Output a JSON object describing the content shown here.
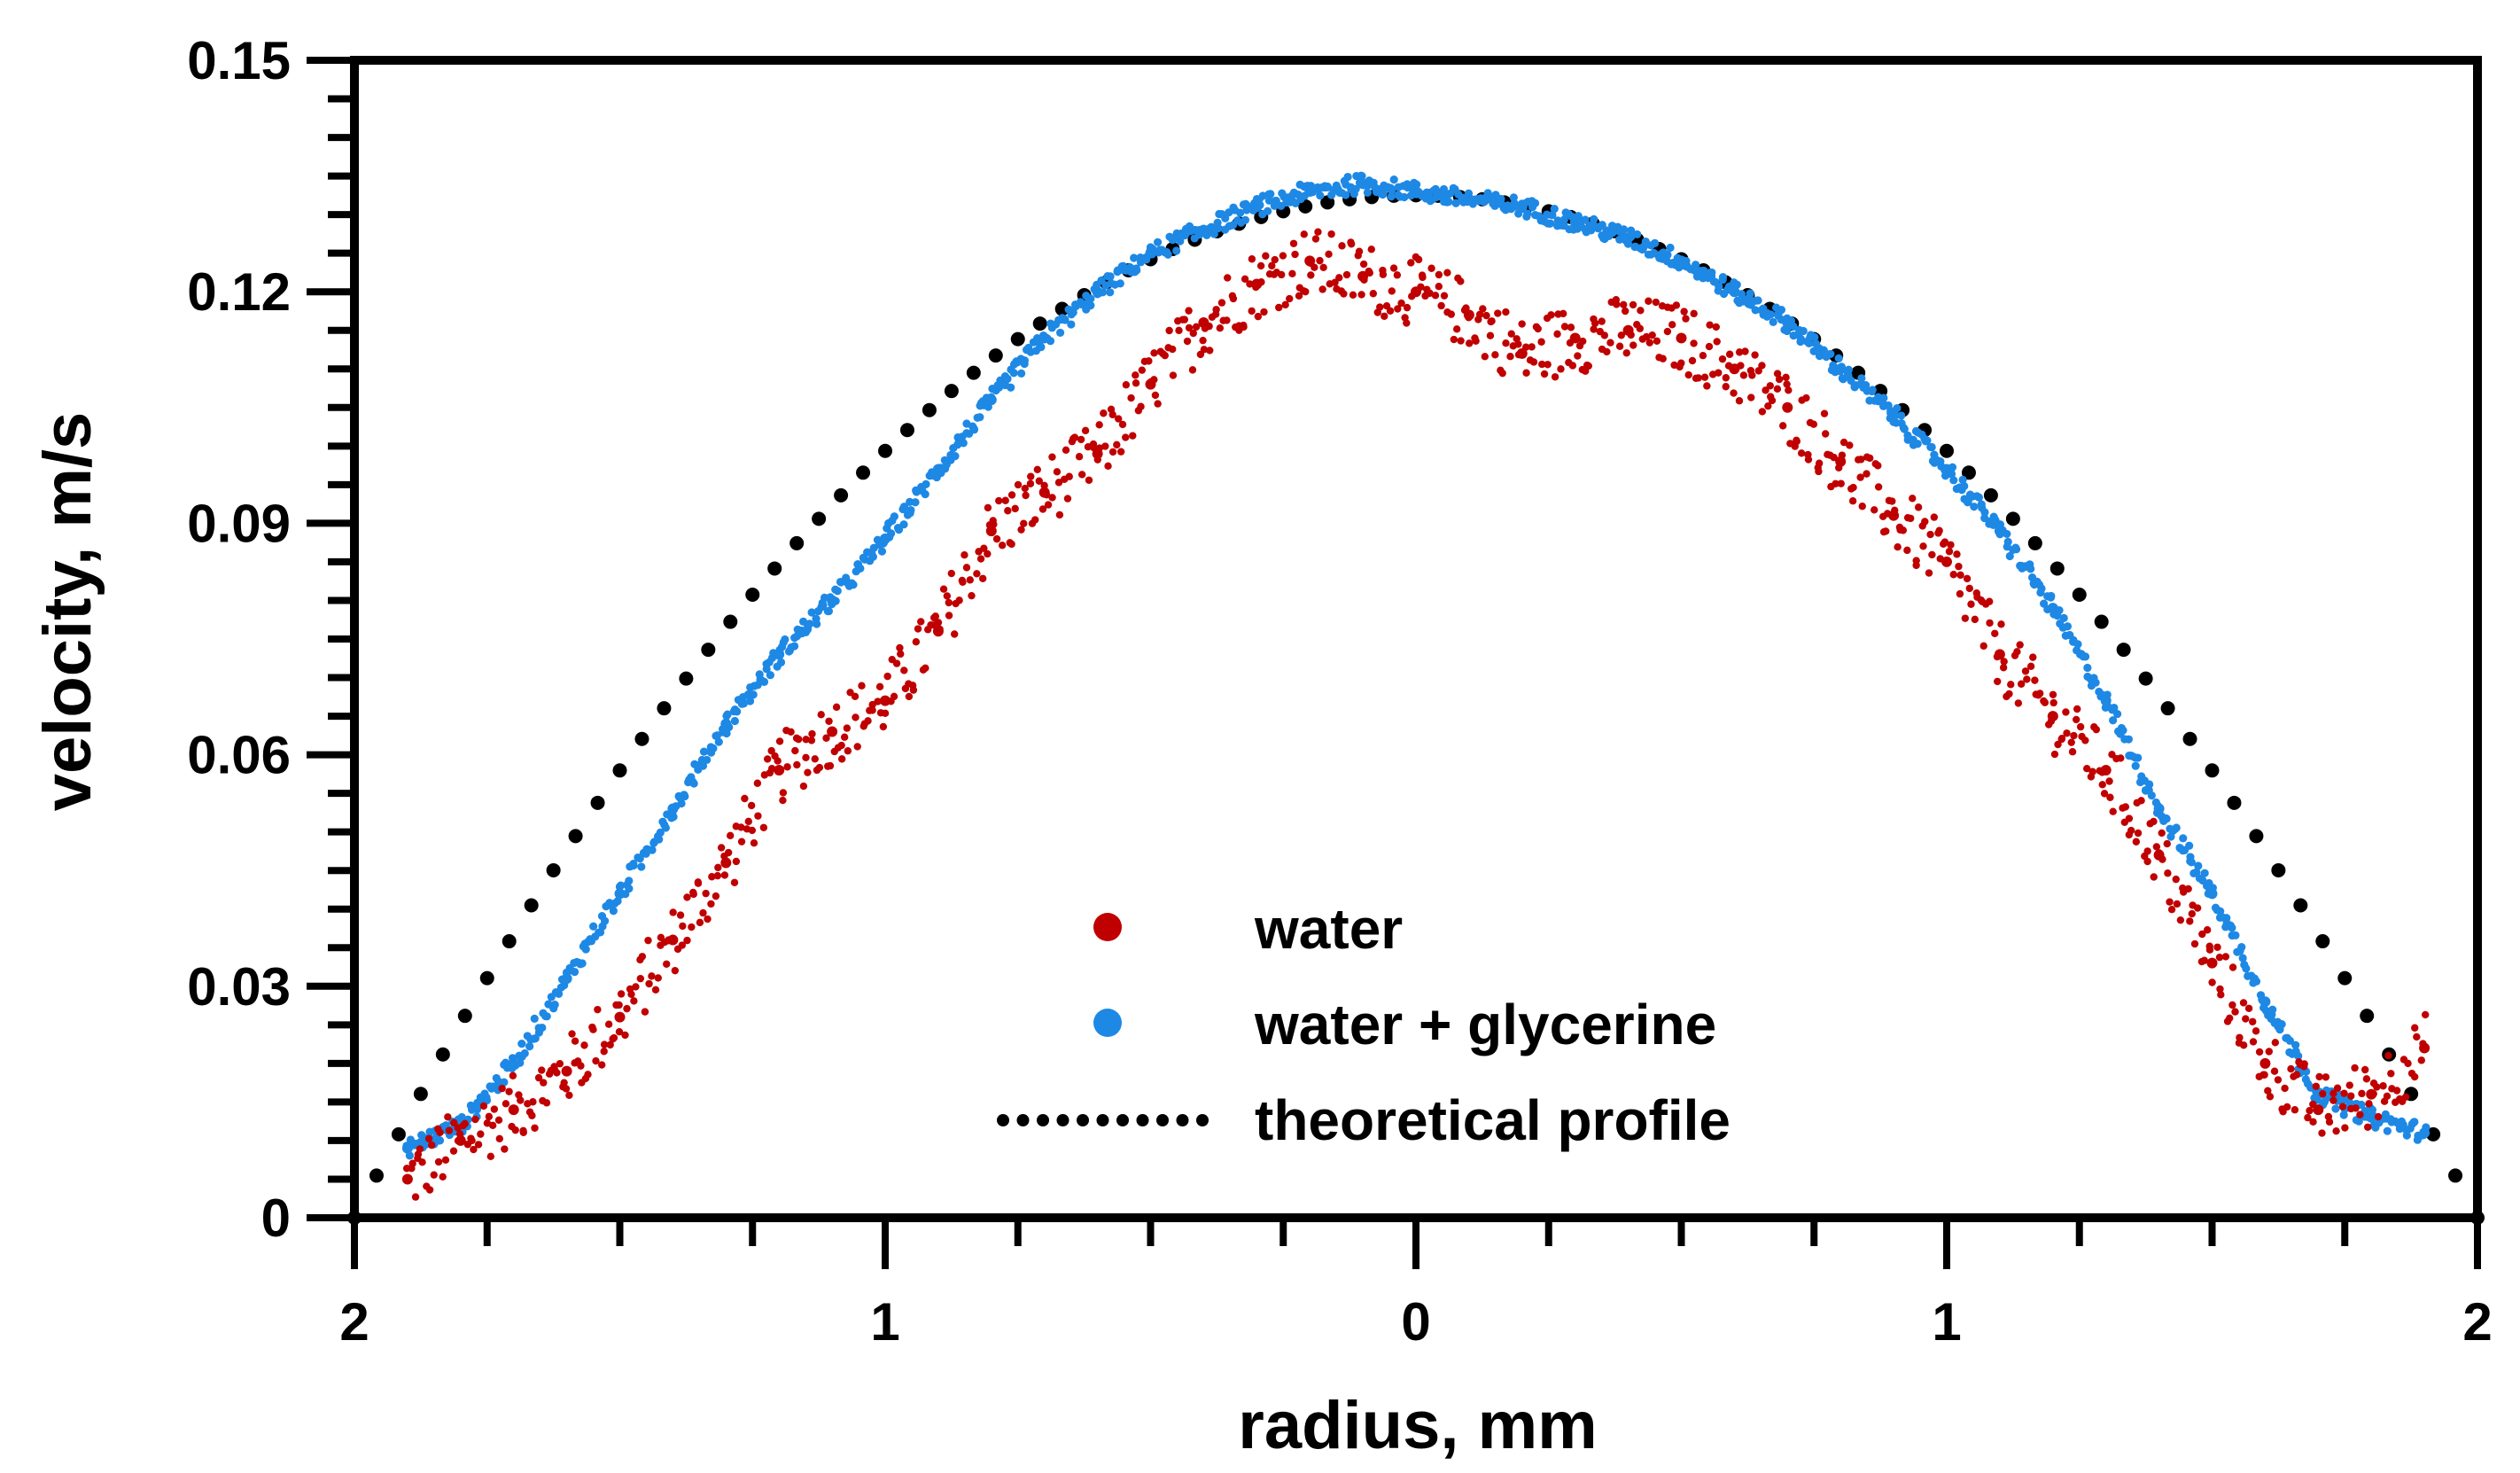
{
  "chart_data": {
    "type": "scatter",
    "xlabel": "radius, mm",
    "ylabel": "velocity, m/s",
    "xlim": [
      -2,
      2
    ],
    "ylim": [
      0,
      0.15
    ],
    "x_ticks": [
      -2,
      -1,
      0,
      1,
      2
    ],
    "x_tick_labels": [
      "2",
      "1",
      "0",
      "1",
      "2"
    ],
    "y_ticks": [
      0,
      0.03,
      0.06,
      0.09,
      0.12,
      0.15
    ],
    "y_tick_labels": [
      "0",
      "0.03",
      "0.06",
      "0.09",
      "0.12",
      "0.15"
    ],
    "grid": false,
    "legend_position": "bottom-center",
    "series": [
      {
        "name": "water",
        "color": "#c00000",
        "marker": "dot",
        "x": [
          -1.9,
          -1.8,
          -1.7,
          -1.6,
          -1.5,
          -1.4,
          -1.3,
          -1.2,
          -1.1,
          -1.0,
          -0.9,
          -0.8,
          -0.7,
          -0.6,
          -0.5,
          -0.4,
          -0.3,
          -0.2,
          -0.1,
          0.0,
          0.1,
          0.2,
          0.3,
          0.4,
          0.5,
          0.6,
          0.7,
          0.8,
          0.9,
          1.0,
          1.1,
          1.2,
          1.3,
          1.4,
          1.5,
          1.6,
          1.7,
          1.8,
          1.9
        ],
        "y": [
          0.005,
          0.01,
          0.014,
          0.019,
          0.026,
          0.036,
          0.046,
          0.058,
          0.063,
          0.067,
          0.076,
          0.089,
          0.094,
          0.099,
          0.108,
          0.116,
          0.121,
          0.124,
          0.122,
          0.12,
          0.117,
          0.112,
          0.114,
          0.115,
          0.114,
          0.11,
          0.105,
          0.098,
          0.091,
          0.085,
          0.073,
          0.065,
          0.058,
          0.047,
          0.033,
          0.02,
          0.014,
          0.016,
          0.022
        ]
      },
      {
        "name": "water + glycerine",
        "color": "#1e88e5",
        "marker": "dot",
        "x": [
          -1.9,
          -1.8,
          -1.7,
          -1.6,
          -1.5,
          -1.4,
          -1.3,
          -1.2,
          -1.1,
          -1.0,
          -0.9,
          -0.8,
          -0.7,
          -0.6,
          -0.5,
          -0.4,
          -0.3,
          -0.2,
          -0.1,
          0.0,
          0.1,
          0.2,
          0.3,
          0.4,
          0.5,
          0.6,
          0.7,
          0.8,
          0.9,
          1.0,
          1.1,
          1.2,
          1.3,
          1.4,
          1.5,
          1.6,
          1.7,
          1.8,
          1.9
        ],
        "y": [
          0.009,
          0.012,
          0.02,
          0.031,
          0.042,
          0.053,
          0.064,
          0.073,
          0.08,
          0.088,
          0.097,
          0.106,
          0.114,
          0.12,
          0.125,
          0.128,
          0.131,
          0.133,
          0.134,
          0.133,
          0.132,
          0.131,
          0.129,
          0.127,
          0.124,
          0.12,
          0.116,
          0.11,
          0.104,
          0.097,
          0.089,
          0.079,
          0.067,
          0.053,
          0.042,
          0.028,
          0.016,
          0.013,
          0.011
        ]
      },
      {
        "name": "theoretical profile",
        "color": "#000000",
        "marker": "dotted-line",
        "vmax": 0.1325,
        "x": [
          -2.0,
          -1.8,
          -1.6,
          -1.4,
          -1.2,
          -1.0,
          -0.8,
          -0.6,
          -0.4,
          -0.2,
          0.0,
          0.2,
          0.4,
          0.6,
          0.8,
          1.0,
          1.2,
          1.4,
          1.6,
          1.8,
          2.0
        ],
        "y": [
          0.0,
          0.0252,
          0.0477,
          0.0676,
          0.0848,
          0.0994,
          0.1113,
          0.1206,
          0.1272,
          0.1312,
          0.1325,
          0.1312,
          0.1272,
          0.1206,
          0.1113,
          0.0994,
          0.0848,
          0.0676,
          0.0477,
          0.0252,
          0.0
        ]
      }
    ]
  },
  "legend": {
    "items": [
      {
        "label": "water",
        "color": "#c00000",
        "type": "dot"
      },
      {
        "label": "water + glycerine",
        "color": "#1e88e5",
        "type": "dot"
      },
      {
        "label": "theoretical profile",
        "color": "#000000",
        "type": "dots"
      }
    ]
  }
}
